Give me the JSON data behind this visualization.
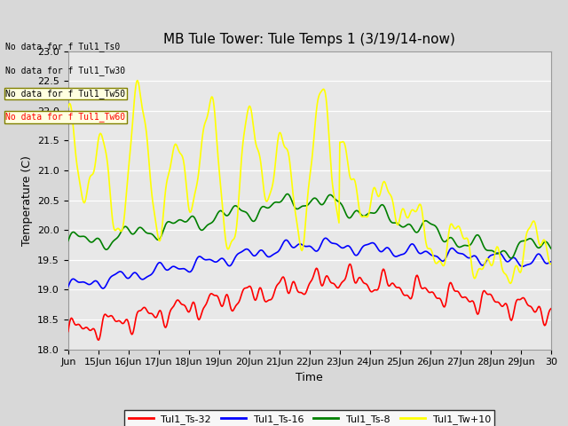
{
  "title": "MB Tule Tower: Tule Temps 1 (3/19/14-now)",
  "xlabel": "Time",
  "ylabel": "Temperature (C)",
  "ylim": [
    18.0,
    23.0
  ],
  "xlim": [
    0,
    16
  ],
  "x_tick_labels": [
    "Jun",
    "15Jun",
    "16Jun",
    "17Jun",
    "18Jun",
    "19Jun",
    "20Jun",
    "21Jun",
    "22Jun",
    "23Jun",
    "24Jun",
    "25Jun",
    "26Jun",
    "27Jun",
    "28Jun",
    "29Jun",
    "30"
  ],
  "yticks": [
    18.0,
    18.5,
    19.0,
    19.5,
    20.0,
    20.5,
    21.0,
    21.5,
    22.0,
    22.5,
    23.0
  ],
  "legend_entries": [
    "Tul1_Ts-32",
    "Tul1_Ts-16",
    "Tul1_Ts-8",
    "Tul1_Tw+10"
  ],
  "legend_colors": [
    "red",
    "blue",
    "green",
    "yellow"
  ],
  "no_data_labels": [
    "No data for f Tul1_Ts0",
    "No data for f Tul1_Tw30",
    "No data for f Tul1_Tw50",
    "No data for f Tul1_Tw60"
  ],
  "background_color": "#d8d8d8",
  "plot_bg_color": "#e8e8e8",
  "grid_color": "#ffffff",
  "title_fontsize": 11,
  "axis_fontsize": 9,
  "tick_fontsize": 8,
  "legend_fontsize": 8
}
